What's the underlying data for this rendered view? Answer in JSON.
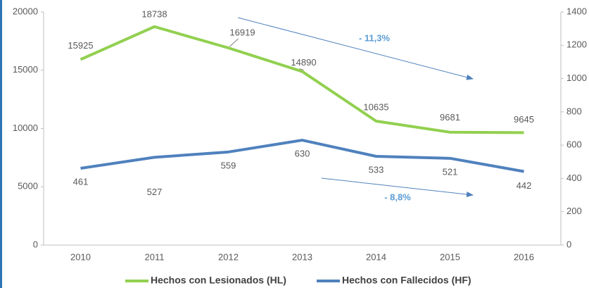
{
  "chart_data": {
    "type": "line",
    "categories": [
      "2010",
      "2011",
      "2012",
      "2013",
      "2014",
      "2015",
      "2016"
    ],
    "series": [
      {
        "name": "Hechos con Lesionados (HL)",
        "color": "#92d050",
        "values": [
          15925,
          18738,
          16919,
          14890,
          10635,
          9681,
          9645
        ]
      },
      {
        "name": "Hechos con Fallecidos (HF)",
        "color": "#4f81bd",
        "axis": "y2",
        "values": [
          461,
          527,
          559,
          630,
          533,
          521,
          442
        ]
      }
    ],
    "ylim": [
      0,
      20000
    ],
    "yticks": [
      0,
      5000,
      10000,
      15000,
      20000
    ],
    "y2lim": [
      0,
      1400
    ],
    "y2ticks": [
      0,
      200,
      400,
      600,
      800,
      1000,
      1200,
      1400
    ],
    "annotations": [
      "- 11,3%",
      "- 8,8%"
    ],
    "grid": false
  }
}
